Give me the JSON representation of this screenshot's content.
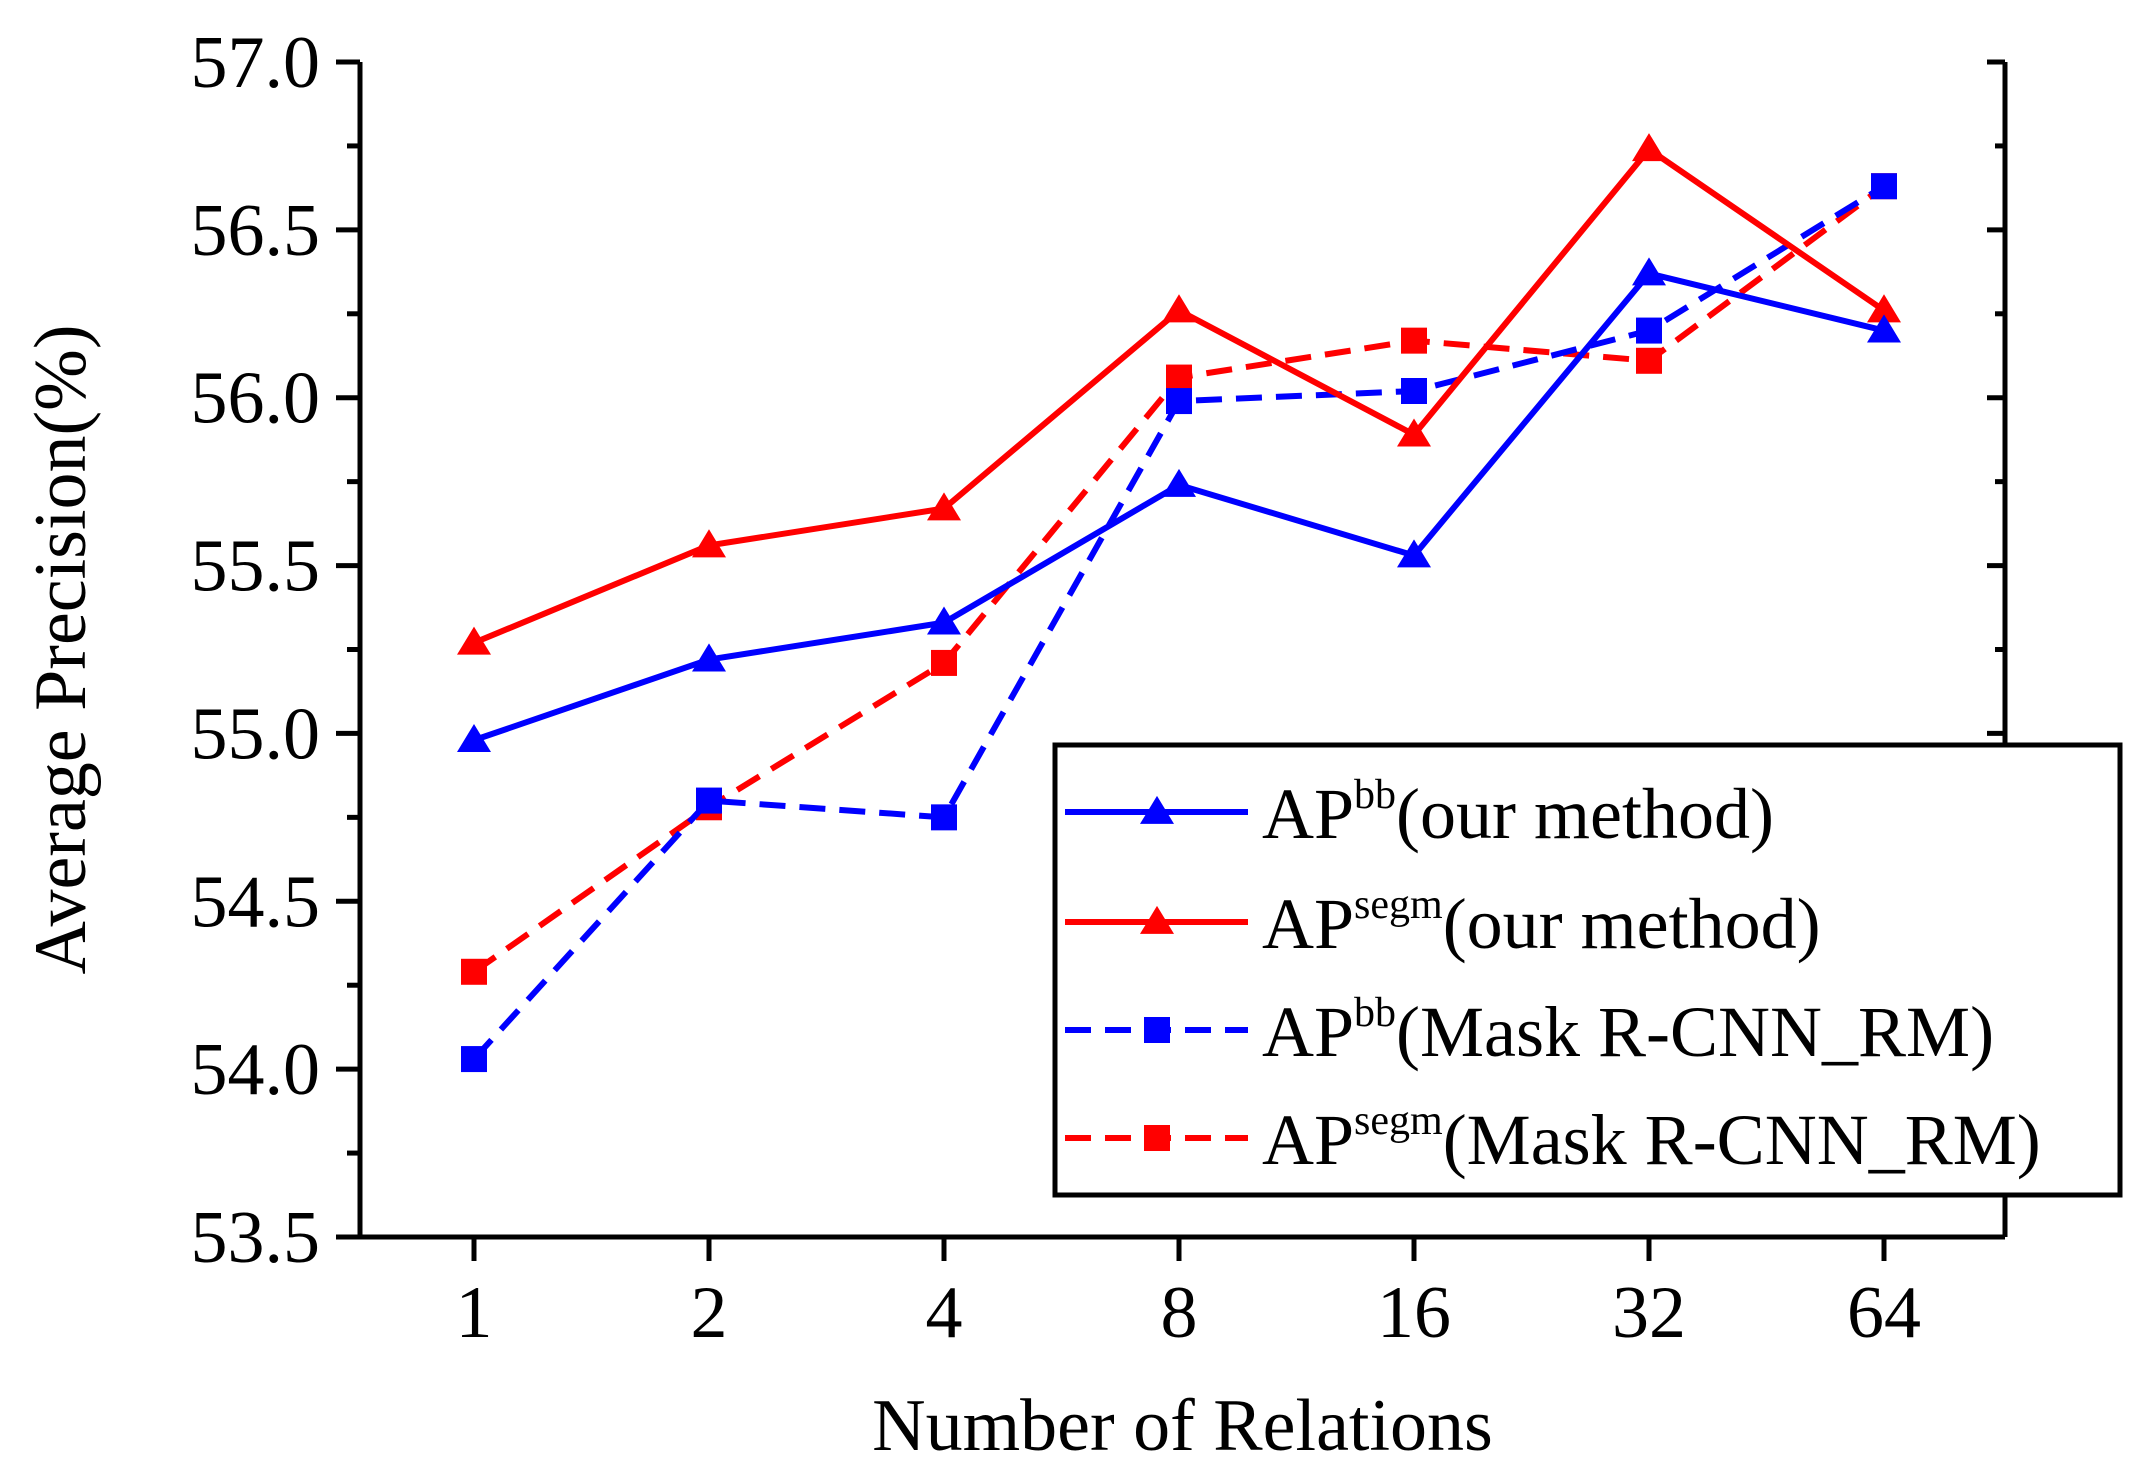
{
  "chart_data": {
    "type": "line",
    "title": "",
    "xlabel": "Number of Relations",
    "ylabel": "Average Precision(%)",
    "categories": [
      "1",
      "2",
      "4",
      "8",
      "16",
      "32",
      "64"
    ],
    "ylim": [
      53.5,
      57.0
    ],
    "yticks": [
      "53.5",
      "54.0",
      "54.5",
      "55.0",
      "55.5",
      "56.0",
      "56.5",
      "57.0"
    ],
    "legend_position": "bottom-right",
    "series": [
      {
        "name": "AP^bb(our method)",
        "label_base": "AP",
        "label_sup": "bb",
        "label_rest": "(our method)",
        "color": "#0000ff",
        "line_style": "solid",
        "marker": "triangle",
        "values": [
          54.98,
          55.22,
          55.33,
          55.74,
          55.53,
          56.37,
          56.2
        ]
      },
      {
        "name": "AP^segm(our method)",
        "label_base": "AP",
        "label_sup": "segm",
        "label_rest": "(our method)",
        "color": "#ff0000",
        "line_style": "solid",
        "marker": "triangle",
        "values": [
          55.27,
          55.56,
          55.67,
          56.26,
          55.89,
          56.74,
          56.26
        ]
      },
      {
        "name": "AP^bb(Mask R-CNN_RM)",
        "label_base": "AP",
        "label_sup": "bb",
        "label_rest": "(Mask R-CNN_RM)",
        "color": "#0000ff",
        "line_style": "dashed",
        "marker": "square",
        "values": [
          54.03,
          54.8,
          54.75,
          55.99,
          56.02,
          56.2,
          56.63
        ]
      },
      {
        "name": "AP^segm(Mask R-CNN_RM)",
        "label_base": "AP",
        "label_sup": "segm",
        "label_rest": "(Mask R-CNN_RM)",
        "color": "#ff0000",
        "line_style": "dashed",
        "marker": "square",
        "values": [
          54.29,
          54.78,
          55.21,
          56.06,
          56.17,
          56.11,
          56.63
        ]
      }
    ]
  }
}
